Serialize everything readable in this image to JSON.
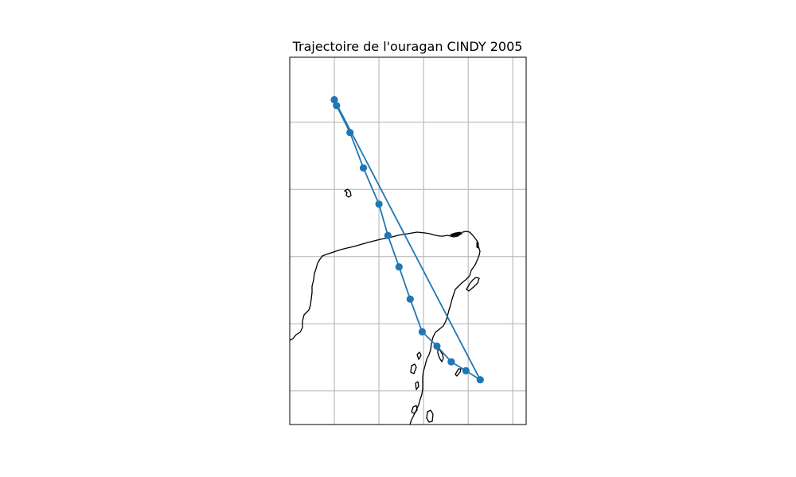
{
  "title": "Trajectoire de l'ouragan CINDY 2005",
  "colors": {
    "track": "#1f77b4",
    "coastline": "#000000",
    "grid": "#b0b0b0"
  },
  "chart_data": {
    "type": "line",
    "projection": "PlateCarree",
    "title": "Trajectoire de l'ouragan CINDY 2005",
    "xlabel": "",
    "ylabel": "",
    "grid": true,
    "marker": "circle",
    "extent": {
      "lon": [
        -90.0,
        -84.7
      ],
      "lat": [
        16.75,
        24.95
      ]
    },
    "gridlines": {
      "lon": [
        -89.0,
        -88.0,
        -87.0,
        -86.0,
        -85.0
      ],
      "lat": [
        17.5,
        19.0,
        20.5,
        22.0,
        23.5
      ]
    },
    "series": [
      {
        "lon": [
          -85.73,
          -86.05,
          -86.38,
          -86.7,
          -87.03,
          -87.3,
          -87.55,
          -87.8,
          -88.0,
          -88.35,
          -88.65,
          -88.95,
          -89.0
        ],
        "lat": [
          17.75,
          17.95,
          18.15,
          18.5,
          18.82,
          19.55,
          20.27,
          20.97,
          21.67,
          22.48,
          23.27,
          23.87,
          24.0
        ]
      }
    ]
  }
}
